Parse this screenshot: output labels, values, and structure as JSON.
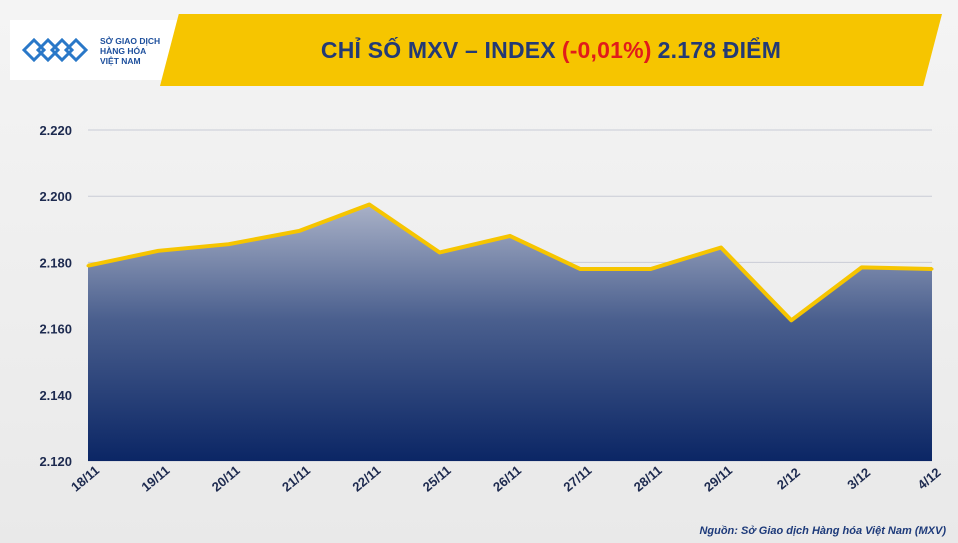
{
  "logo": {
    "line1": "SỞ GIAO DỊCH",
    "line2": "HÀNG HÓA",
    "line3": "VIỆT NAM"
  },
  "title": {
    "prefix": "CHỈ SỐ MXV – INDEX",
    "change": "(-0,01%)",
    "suffix": "2.178 ĐIỂM"
  },
  "source": "Nguồn: Sở Giao dịch Hàng hóa Việt Nam (MXV)",
  "colors": {
    "banner": "#f6c500",
    "title": "#233a75",
    "change": "#e11b1b",
    "line": "#f6c500",
    "area_top": "#a8b0c6",
    "area_bottom": "#0b2665"
  },
  "chart_data": {
    "type": "area",
    "categories": [
      "18/11",
      "19/11",
      "20/11",
      "21/11",
      "22/11",
      "25/11",
      "26/11",
      "27/11",
      "28/11",
      "29/11",
      "2/12",
      "3/12",
      "4/12"
    ],
    "values": [
      2179,
      2183.5,
      2185.5,
      2189.5,
      2197.5,
      2183,
      2188,
      2178,
      2178,
      2184.5,
      2162.5,
      2178.5,
      2178
    ],
    "ylim": [
      2120,
      2220
    ],
    "yticks": [
      "2.120",
      "2.140",
      "2.160",
      "2.180",
      "2.200",
      "2.220"
    ],
    "ytick_values": [
      2120,
      2140,
      2160,
      2180,
      2200,
      2220
    ],
    "grid": true,
    "legend": "none"
  }
}
